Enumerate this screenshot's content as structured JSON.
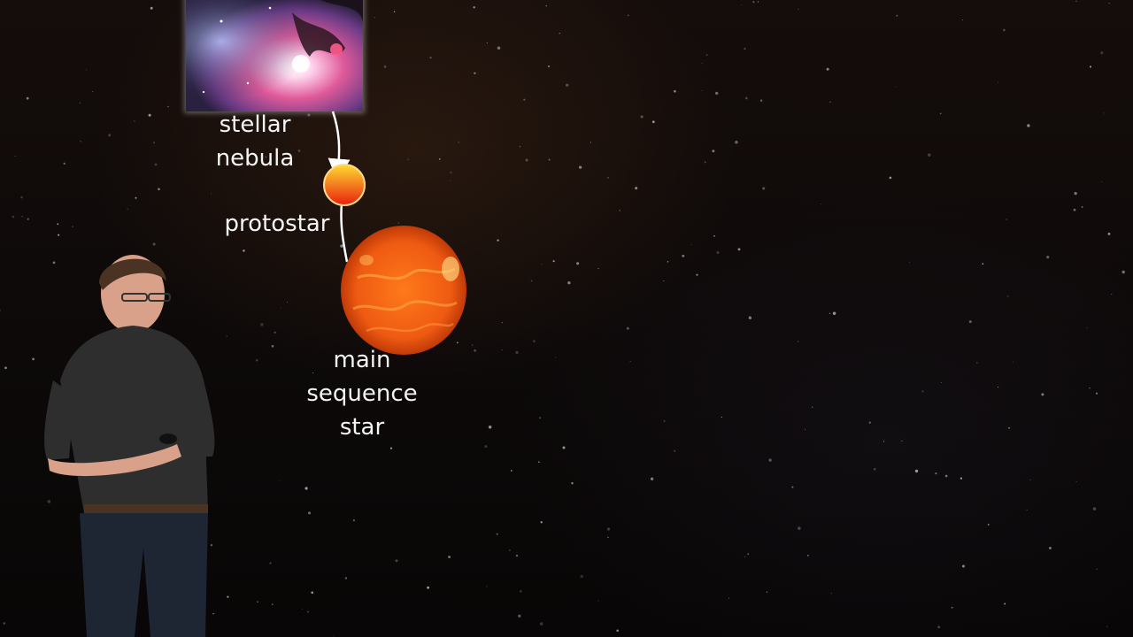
{
  "stages": {
    "nebula": {
      "lines": [
        "stellar",
        "nebula"
      ]
    },
    "protostar": {
      "lines": [
        "protostar"
      ]
    },
    "main_sequence": {
      "lines": [
        "main",
        "sequence",
        "star"
      ]
    }
  },
  "colors": {
    "label_text": "#f4f4f4",
    "arrow": "#ffffff",
    "protostar_top": "#ffdb30",
    "protostar_bottom": "#e8200f",
    "main_star": "#ee5a12"
  },
  "icons": {
    "nebula": "nebula-photo",
    "protostar": "protostar-icon",
    "main_sequence": "main-sequence-star-icon"
  }
}
